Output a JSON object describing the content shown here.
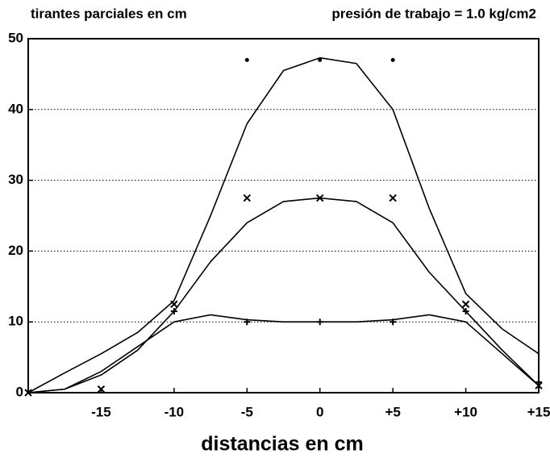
{
  "chart_data": {
    "type": "line",
    "title": "tirantes parciales en cm",
    "subtitle": "presión de trabajo = 1.0 kg/cm2",
    "x_label": "distancias en cm",
    "x": [
      -20,
      -17.5,
      -15,
      -12.5,
      -10,
      -7.5,
      -5,
      -2.5,
      0,
      2.5,
      5,
      7.5,
      10,
      12.5,
      15
    ],
    "series": [
      {
        "color": "#000",
        "values": [
          0,
          2.8,
          5.5,
          8.5,
          13,
          25,
          38,
          45.5,
          47.3,
          46.5,
          40,
          26,
          14,
          9,
          5.5
        ]
      },
      {
        "color": "#000",
        "values": [
          0,
          0.5,
          2.5,
          6,
          11.5,
          18.5,
          24,
          27,
          27.5,
          27,
          24,
          17,
          11.5,
          6,
          1
        ]
      },
      {
        "color": "#000",
        "values": [
          0,
          0.5,
          3,
          6.5,
          10,
          11,
          10.3,
          10,
          10,
          10,
          10.3,
          11,
          10,
          5.5,
          1
        ]
      }
    ],
    "markers": [
      {
        "marker": "dot",
        "x": [
          -5,
          0,
          5
        ],
        "values": [
          47,
          47,
          47
        ]
      },
      {
        "marker": "x",
        "x": [
          -20,
          -15,
          -10,
          -5,
          0,
          5,
          10,
          15
        ],
        "values": [
          0,
          0.5,
          12.5,
          27.5,
          27.5,
          27.5,
          12.5,
          1
        ]
      },
      {
        "marker": "plus",
        "x": [
          -10,
          -5,
          0,
          5,
          10,
          15
        ],
        "values": [
          11.5,
          10,
          10,
          10,
          11.5,
          1.5
        ]
      }
    ],
    "xlim": [
      -20,
      15
    ],
    "ylim": [
      0,
      50
    ],
    "xticks": [
      -15,
      -10,
      -5,
      0,
      {
        "value": 5,
        "label": "+5"
      },
      {
        "value": 10,
        "label": "+10"
      },
      {
        "value": 15,
        "label": "+15"
      }
    ],
    "yticks": [
      0,
      10,
      20,
      30,
      40,
      50
    ],
    "grid": true
  }
}
